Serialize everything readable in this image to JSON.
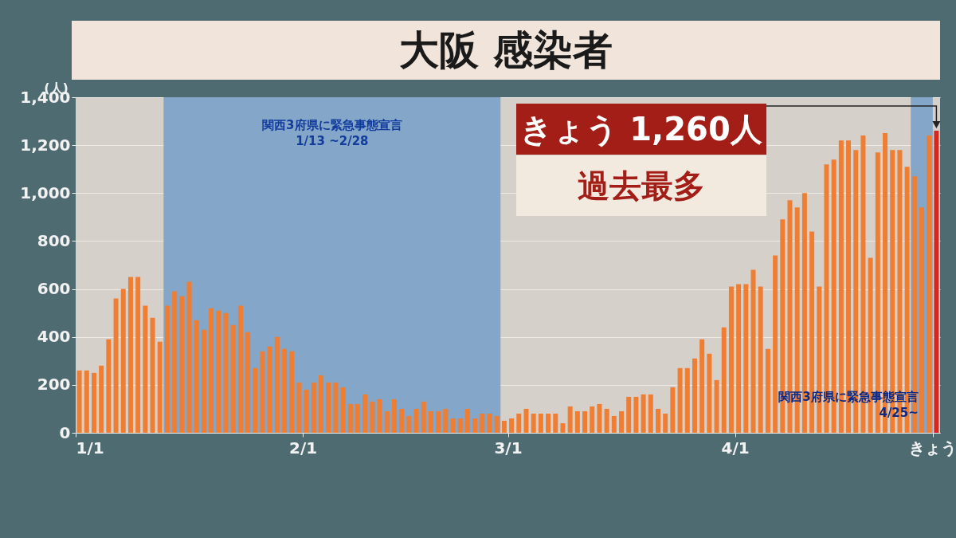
{
  "chart_data": {
    "type": "bar",
    "title": "大阪 感染者",
    "ylabel": "(人)",
    "x": [
      "--01-01",
      "--01-02",
      "--01-03",
      "--01-04",
      "--01-05",
      "--01-06",
      "--01-07",
      "--01-08",
      "--01-09",
      "--01-10",
      "--01-11",
      "--01-12",
      "--01-13",
      "--01-14",
      "--01-15",
      "--01-16",
      "--01-17",
      "--01-18",
      "--01-19",
      "--01-20",
      "--01-21",
      "--01-22",
      "--01-23",
      "--01-24",
      "--01-25",
      "--01-26",
      "--01-27",
      "--01-28",
      "--01-29",
      "--01-30",
      "--01-31",
      "--02-01",
      "--02-02",
      "--02-03",
      "--02-04",
      "--02-05",
      "--02-06",
      "--02-07",
      "--02-08",
      "--02-09",
      "--02-10",
      "--02-11",
      "--02-12",
      "--02-13",
      "--02-14",
      "--02-15",
      "--02-16",
      "--02-17",
      "--02-18",
      "--02-19",
      "--02-20",
      "--02-21",
      "--02-22",
      "--02-23",
      "--02-24",
      "--02-25",
      "--02-26",
      "--02-27",
      "--02-28",
      "--03-01",
      "--03-02",
      "--03-03",
      "--03-04",
      "--03-05",
      "--03-06",
      "--03-07",
      "--03-08",
      "--03-09",
      "--03-10",
      "--03-11",
      "--03-12",
      "--03-13",
      "--03-14",
      "--03-15",
      "--03-16",
      "--03-17",
      "--03-18",
      "--03-19",
      "--03-20",
      "--03-21",
      "--03-22",
      "--03-23",
      "--03-24",
      "--03-25",
      "--03-26",
      "--03-27",
      "--03-28",
      "--03-29",
      "--03-30",
      "--03-31",
      "--04-01",
      "--04-02",
      "--04-03",
      "--04-04",
      "--04-05",
      "--04-06",
      "--04-07",
      "--04-08",
      "--04-09",
      "--04-10",
      "--04-11",
      "--04-12",
      "--04-13",
      "--04-14",
      "--04-15",
      "--04-16",
      "--04-17",
      "--04-18",
      "--04-19",
      "--04-20",
      "--04-21",
      "--04-22",
      "--04-23",
      "--04-24",
      "--04-25",
      "--04-26",
      "--04-27",
      "--04-28"
    ],
    "values": [
      260,
      260,
      250,
      280,
      390,
      560,
      600,
      650,
      650,
      530,
      480,
      380,
      530,
      590,
      570,
      630,
      470,
      430,
      520,
      510,
      500,
      450,
      530,
      420,
      270,
      340,
      360,
      400,
      350,
      340,
      210,
      180,
      210,
      240,
      210,
      210,
      190,
      120,
      120,
      160,
      130,
      140,
      90,
      140,
      100,
      70,
      100,
      130,
      90,
      90,
      100,
      60,
      60,
      100,
      60,
      80,
      80,
      70,
      50,
      60,
      80,
      100,
      80,
      80,
      80,
      80,
      40,
      110,
      90,
      90,
      110,
      120,
      100,
      70,
      90,
      150,
      150,
      160,
      160,
      100,
      80,
      190,
      270,
      270,
      310,
      390,
      330,
      220,
      440,
      610,
      620,
      620,
      680,
      610,
      350,
      740,
      890,
      970,
      940,
      1000,
      840,
      610,
      1120,
      1140,
      1220,
      1220,
      1180,
      1240,
      730,
      1170,
      1250,
      1180,
      1180,
      1110,
      1070,
      940,
      1240,
      1260
    ],
    "colors": [
      "#ef7d32",
      "#ef7d32",
      "#ef7d32",
      "#ef7d32",
      "#ef7d32",
      "#ef7d32",
      "#ef7d32",
      "#ef7d32",
      "#ef7d32",
      "#ef7d32",
      "#ef7d32",
      "#ef7d32",
      "#ef7d32",
      "#ef7d32",
      "#ef7d32",
      "#ef7d32",
      "#ef7d32",
      "#ef7d32",
      "#ef7d32",
      "#ef7d32",
      "#ef7d32",
      "#ef7d32",
      "#ef7d32",
      "#ef7d32",
      "#ef7d32",
      "#ef7d32",
      "#ef7d32",
      "#ef7d32",
      "#ef7d32",
      "#ef7d32",
      "#ef7d32",
      "#ef7d32",
      "#ef7d32",
      "#ef7d32",
      "#ef7d32",
      "#ef7d32",
      "#ef7d32",
      "#ef7d32",
      "#ef7d32",
      "#ef7d32",
      "#ef7d32",
      "#ef7d32",
      "#ef7d32",
      "#ef7d32",
      "#ef7d32",
      "#ef7d32",
      "#ef7d32",
      "#ef7d32",
      "#ef7d32",
      "#ef7d32",
      "#ef7d32",
      "#ef7d32",
      "#ef7d32",
      "#ef7d32",
      "#ef7d32",
      "#ef7d32",
      "#ef7d32",
      "#ef7d32",
      "#ef7d32",
      "#ef7d32",
      "#ef7d32",
      "#ef7d32",
      "#ef7d32",
      "#ef7d32",
      "#ef7d32",
      "#ef7d32",
      "#ef7d32",
      "#ef7d32",
      "#ef7d32",
      "#ef7d32",
      "#ef7d32",
      "#ef7d32",
      "#ef7d32",
      "#ef7d32",
      "#ef7d32",
      "#ef7d32",
      "#ef7d32",
      "#ef7d32",
      "#ef7d32",
      "#ef7d32",
      "#ef7d32",
      "#ef7d32",
      "#ef7d32",
      "#ef7d32",
      "#ef7d32",
      "#ef7d32",
      "#ef7d32",
      "#ef7d32",
      "#ef7d32",
      "#ef7d32",
      "#ef7d32",
      "#ef7d32",
      "#ef7d32",
      "#ef7d32",
      "#ef7d32",
      "#ef7d32",
      "#ef7d32",
      "#ef7d32",
      "#ef7d32",
      "#ef7d32",
      "#ef7d32",
      "#ef7d32",
      "#ef7d32",
      "#ef7d32",
      "#ef7d32",
      "#ef7d32",
      "#ef7d32",
      "#ef7d32",
      "#ef7d32",
      "#ef7d32",
      "#ef7d32",
      "#ef7d32",
      "#ef7d32",
      "#ef7d32",
      "#ef7d32",
      "#ef7d32",
      "#ef7d32",
      "#d9261c"
    ],
    "xlim": [
      "--01-01",
      "--04-29"
    ],
    "xticks": [
      {
        "value": "--01-01",
        "label": "1/1"
      },
      {
        "value": "--02-01",
        "label": "2/1"
      },
      {
        "value": "--03-01",
        "label": "3/1"
      },
      {
        "value": "--04-01",
        "label": "4/1"
      },
      {
        "value": "--04-28",
        "label": "きょう"
      }
    ],
    "ylim": [
      0,
      1400
    ],
    "yticks": [
      0,
      200,
      400,
      600,
      800,
      {
        "value": 1000,
        "label": "1,000"
      },
      {
        "value": 1200,
        "label": "1,200"
      },
      {
        "value": 1400,
        "label": "1,400"
      }
    ],
    "grid": "y",
    "bands": [
      {
        "axis": "x",
        "from": "--01-13",
        "to": "--02-28",
        "label": "関西3府県に緊急事態宣言\n1/13 ~2/28",
        "color": "#84a6c8"
      },
      {
        "axis": "x",
        "from": "--04-25",
        "to": "--04-28",
        "label": "関西3府県に緊急事態宣言\n4/25~",
        "color": "#84a6c8"
      }
    ],
    "annotations": [
      "きょう 1,260人",
      "過去最多"
    ]
  }
}
